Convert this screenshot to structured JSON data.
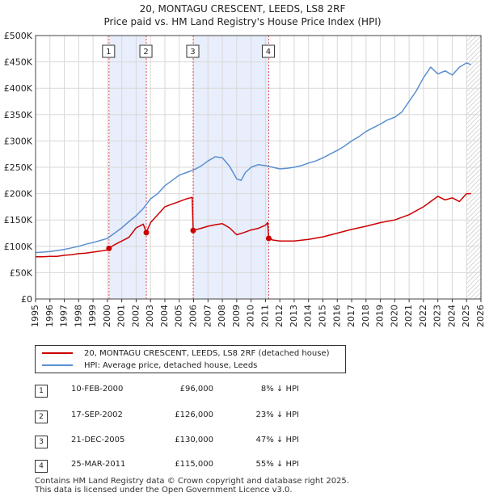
{
  "title": "20, MONTAGU CRESCENT, LEEDS, LS8 2RF",
  "subtitle": "Price paid vs. HM Land Registry's House Price Index (HPI)",
  "colors": {
    "property_line": "#cc0000",
    "hpi_line": "#5b8fd0",
    "shade": "#e8eefb",
    "marker_line": "#e05050",
    "grid": "#d8d8d8"
  },
  "chart_data": {
    "type": "line",
    "title": "20, MONTAGU CRESCENT, LEEDS, LS8 2RF",
    "subtitle": "Price paid vs. HM Land Registry's House Price Index (HPI)",
    "xlim": [
      1995,
      2026
    ],
    "ylim": [
      0,
      500000
    ],
    "x_ticks": [
      1995,
      1996,
      1997,
      1998,
      1999,
      2000,
      2001,
      2002,
      2003,
      2004,
      2005,
      2006,
      2007,
      2008,
      2009,
      2010,
      2011,
      2012,
      2013,
      2014,
      2015,
      2016,
      2017,
      2018,
      2019,
      2020,
      2021,
      2022,
      2023,
      2024,
      2025,
      2026
    ],
    "y_ticks": [
      0,
      50000,
      100000,
      150000,
      200000,
      250000,
      300000,
      350000,
      400000,
      450000,
      500000
    ],
    "y_tick_labels": [
      "£0",
      "£50K",
      "£100K",
      "£150K",
      "£200K",
      "£250K",
      "£300K",
      "£350K",
      "£400K",
      "£450K",
      "£500K"
    ],
    "grid": true,
    "shaded_ranges": [
      [
        2000.11,
        2002.71
      ],
      [
        2005.97,
        2011.23
      ]
    ],
    "hatched_from": 2025.0,
    "series": [
      {
        "name": "20, MONTAGU CRESCENT, LEEDS, LS8 2RF (detached house)",
        "color": "#cc0000",
        "x": [
          1995.0,
          1995.5,
          1996.0,
          1996.5,
          1997.0,
          1997.5,
          1998.0,
          1998.5,
          1999.0,
          1999.5,
          2000.0,
          2000.11,
          2000.5,
          2001.0,
          2001.5,
          2002.0,
          2002.5,
          2002.71,
          2003.0,
          2003.5,
          2004.0,
          2004.5,
          2005.0,
          2005.5,
          2005.9,
          2005.97,
          2006.5,
          2007.0,
          2007.5,
          2008.0,
          2008.5,
          2009.0,
          2009.5,
          2010.0,
          2010.5,
          2011.0,
          2011.15,
          2011.23,
          2011.5,
          2012.0,
          2013.0,
          2014.0,
          2015.0,
          2016.0,
          2017.0,
          2018.0,
          2019.0,
          2020.0,
          2021.0,
          2022.0,
          2022.5,
          2023.0,
          2023.5,
          2024.0,
          2024.5,
          2025.0,
          2025.3
        ],
        "y": [
          80000,
          80000,
          81000,
          81000,
          83000,
          84000,
          86000,
          87000,
          89000,
          91000,
          93000,
          96000,
          103000,
          110000,
          117000,
          135000,
          142000,
          126000,
          145000,
          160000,
          175000,
          180000,
          185000,
          190000,
          193000,
          130000,
          134000,
          138000,
          141000,
          143000,
          135000,
          122000,
          126000,
          131000,
          134000,
          140000,
          145000,
          115000,
          112000,
          110000,
          110000,
          113000,
          118000,
          125000,
          132000,
          138000,
          145000,
          150000,
          160000,
          175000,
          185000,
          195000,
          188000,
          192000,
          185000,
          200000,
          200000
        ]
      },
      {
        "name": "HPI: Average price, detached house, Leeds",
        "color": "#5b8fd0",
        "x": [
          1995.0,
          1995.5,
          1996.0,
          1996.5,
          1997.0,
          1997.5,
          1998.0,
          1998.5,
          1999.0,
          1999.5,
          2000.0,
          2000.5,
          2001.0,
          2001.5,
          2002.0,
          2002.5,
          2003.0,
          2003.5,
          2004.0,
          2004.5,
          2005.0,
          2005.5,
          2006.0,
          2006.5,
          2007.0,
          2007.5,
          2008.0,
          2008.5,
          2009.0,
          2009.3,
          2009.6,
          2010.0,
          2010.5,
          2011.0,
          2011.5,
          2012.0,
          2012.5,
          2013.0,
          2013.5,
          2014.0,
          2014.5,
          2015.0,
          2015.5,
          2016.0,
          2016.5,
          2017.0,
          2017.5,
          2018.0,
          2018.5,
          2019.0,
          2019.5,
          2020.0,
          2020.5,
          2021.0,
          2021.5,
          2022.0,
          2022.5,
          2023.0,
          2023.5,
          2024.0,
          2024.5,
          2025.0,
          2025.3
        ],
        "y": [
          88000,
          89000,
          90000,
          92000,
          94000,
          97000,
          100000,
          104000,
          107000,
          111000,
          115000,
          125000,
          135000,
          147000,
          158000,
          172000,
          190000,
          200000,
          215000,
          225000,
          235000,
          240000,
          245000,
          252000,
          262000,
          270000,
          268000,
          252000,
          228000,
          225000,
          240000,
          250000,
          255000,
          253000,
          250000,
          247000,
          248000,
          250000,
          253000,
          258000,
          262000,
          268000,
          275000,
          282000,
          290000,
          300000,
          308000,
          318000,
          325000,
          332000,
          340000,
          345000,
          355000,
          375000,
          395000,
          420000,
          440000,
          427000,
          433000,
          425000,
          440000,
          448000,
          445000
        ]
      }
    ],
    "sales": [
      {
        "label": "1",
        "x": 2000.11,
        "y": 96000
      },
      {
        "label": "2",
        "x": 2002.71,
        "y": 126000
      },
      {
        "label": "3",
        "x": 2005.97,
        "y": 130000
      },
      {
        "label": "4",
        "x": 2011.23,
        "y": 115000
      }
    ]
  },
  "legend": {
    "items": [
      {
        "label": "20, MONTAGU CRESCENT, LEEDS, LS8 2RF (detached house)",
        "color": "#cc0000"
      },
      {
        "label": "HPI: Average price, detached house, Leeds",
        "color": "#5b8fd0"
      }
    ]
  },
  "sales_table": [
    {
      "num": "1",
      "date": "10-FEB-2000",
      "price": "£96,000",
      "hpi": "8% ↓ HPI"
    },
    {
      "num": "2",
      "date": "17-SEP-2002",
      "price": "£126,000",
      "hpi": "23% ↓ HPI"
    },
    {
      "num": "3",
      "date": "21-DEC-2005",
      "price": "£130,000",
      "hpi": "47% ↓ HPI"
    },
    {
      "num": "4",
      "date": "25-MAR-2011",
      "price": "£115,000",
      "hpi": "55% ↓ HPI"
    }
  ],
  "footer": {
    "line1": "Contains HM Land Registry data © Crown copyright and database right 2025.",
    "line2": "This data is licensed under the Open Government Licence v3.0."
  }
}
